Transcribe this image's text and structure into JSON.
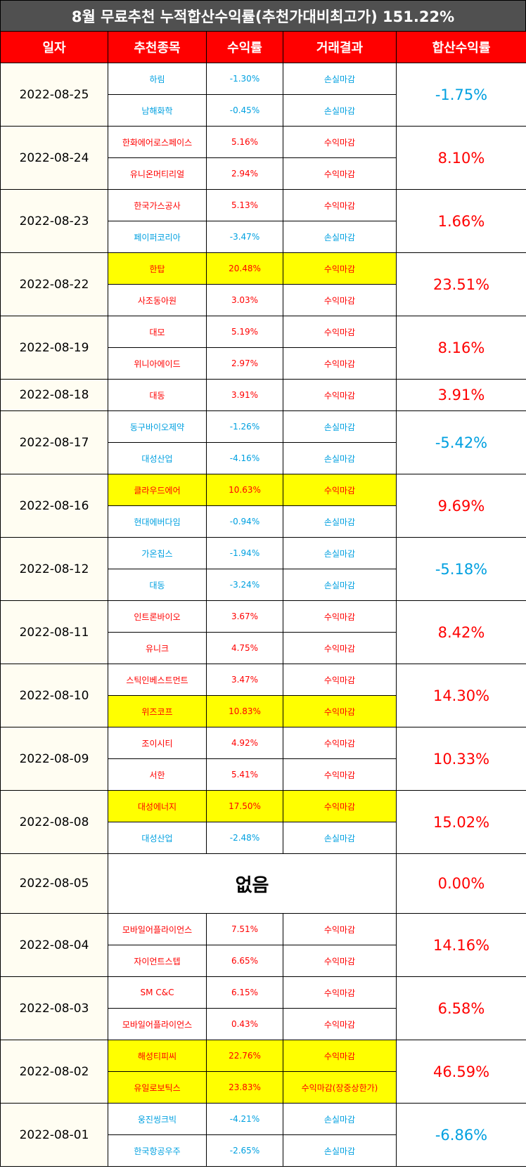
{
  "title": "8월 무료추천 누적합산수익률(추천가대비최고가) 151.22%",
  "headers": [
    "일자",
    "추천종목",
    "수익률",
    "거래결과",
    "합산수익률"
  ],
  "colors": {
    "header_bg": "#ff0000",
    "title_bg": "#505050",
    "profit": "#ff0000",
    "loss": "#00a0e0",
    "highlight": "#ffff00",
    "date_bg": "#fffdf2"
  },
  "rows": [
    {
      "date": "2022-08-25",
      "sum": "-1.75%",
      "items": [
        {
          "name": "하림",
          "rate": "-1.30%",
          "result": "손실마감",
          "hl": false
        },
        {
          "name": "남해화학",
          "rate": "-0.45%",
          "result": "손실마감",
          "hl": false
        }
      ]
    },
    {
      "date": "2022-08-24",
      "sum": "8.10%",
      "items": [
        {
          "name": "한화에어로스페이스",
          "rate": "5.16%",
          "result": "수익마감",
          "hl": false
        },
        {
          "name": "유니온머티리얼",
          "rate": "2.94%",
          "result": "수익마감",
          "hl": false
        }
      ]
    },
    {
      "date": "2022-08-23",
      "sum": "1.66%",
      "items": [
        {
          "name": "한국가스공사",
          "rate": "5.13%",
          "result": "수익마감",
          "hl": false
        },
        {
          "name": "페이퍼코리아",
          "rate": "-3.47%",
          "result": "손실마감",
          "hl": false
        }
      ]
    },
    {
      "date": "2022-08-22",
      "sum": "23.51%",
      "items": [
        {
          "name": "한탑",
          "rate": "20.48%",
          "result": "수익마감",
          "hl": true
        },
        {
          "name": "사조동아원",
          "rate": "3.03%",
          "result": "수익마감",
          "hl": false
        }
      ]
    },
    {
      "date": "2022-08-19",
      "sum": "8.16%",
      "items": [
        {
          "name": "대모",
          "rate": "5.19%",
          "result": "수익마감",
          "hl": false
        },
        {
          "name": "위니아에이드",
          "rate": "2.97%",
          "result": "수익마감",
          "hl": false
        }
      ]
    },
    {
      "date": "2022-08-18",
      "sum": "3.91%",
      "items": [
        {
          "name": "대동",
          "rate": "3.91%",
          "result": "수익마감",
          "hl": false
        }
      ]
    },
    {
      "date": "2022-08-17",
      "sum": "-5.42%",
      "items": [
        {
          "name": "동구바이오제약",
          "rate": "-1.26%",
          "result": "손실마감",
          "hl": false
        },
        {
          "name": "대성산업",
          "rate": "-4.16%",
          "result": "손실마감",
          "hl": false
        }
      ]
    },
    {
      "date": "2022-08-16",
      "sum": "9.69%",
      "items": [
        {
          "name": "클라우드에어",
          "rate": "10.63%",
          "result": "수익마감",
          "hl": true
        },
        {
          "name": "현대에버다임",
          "rate": "-0.94%",
          "result": "손실마감",
          "hl": false
        }
      ]
    },
    {
      "date": "2022-08-12",
      "sum": "-5.18%",
      "items": [
        {
          "name": "가온칩스",
          "rate": "-1.94%",
          "result": "손실마감",
          "hl": false
        },
        {
          "name": "대동",
          "rate": "-3.24%",
          "result": "손실마감",
          "hl": false
        }
      ]
    },
    {
      "date": "2022-08-11",
      "sum": "8.42%",
      "items": [
        {
          "name": "인트론바이오",
          "rate": "3.67%",
          "result": "수익마감",
          "hl": false
        },
        {
          "name": "유니크",
          "rate": "4.75%",
          "result": "수익마감",
          "hl": false
        }
      ]
    },
    {
      "date": "2022-08-10",
      "sum": "14.30%",
      "items": [
        {
          "name": "스틱인베스트먼트",
          "rate": "3.47%",
          "result": "수익마감",
          "hl": false
        },
        {
          "name": "위즈코프",
          "rate": "10.83%",
          "result": "수익마감",
          "hl": true
        }
      ]
    },
    {
      "date": "2022-08-09",
      "sum": "10.33%",
      "items": [
        {
          "name": "조이시티",
          "rate": "4.92%",
          "result": "수익마감",
          "hl": false
        },
        {
          "name": "서한",
          "rate": "5.41%",
          "result": "수익마감",
          "hl": false
        }
      ]
    },
    {
      "date": "2022-08-08",
      "sum": "15.02%",
      "items": [
        {
          "name": "대성에너지",
          "rate": "17.50%",
          "result": "수익마감",
          "hl": true
        },
        {
          "name": "대성산업",
          "rate": "-2.48%",
          "result": "손실마감",
          "hl": false
        }
      ]
    },
    {
      "date": "2022-08-05",
      "sum": "0.00%",
      "none": "없음",
      "items": []
    },
    {
      "date": "2022-08-04",
      "sum": "14.16%",
      "items": [
        {
          "name": "모바일어플라이언스",
          "rate": "7.51%",
          "result": "수익마감",
          "hl": false
        },
        {
          "name": "자이언트스텝",
          "rate": "6.65%",
          "result": "수익마감",
          "hl": false
        }
      ]
    },
    {
      "date": "2022-08-03",
      "sum": "6.58%",
      "items": [
        {
          "name": "SM C&C",
          "rate": "6.15%",
          "result": "수익마감",
          "hl": false
        },
        {
          "name": "모바일어플라이언스",
          "rate": "0.43%",
          "result": "수익마감",
          "hl": false
        }
      ]
    },
    {
      "date": "2022-08-02",
      "sum": "46.59%",
      "items": [
        {
          "name": "해성티피씨",
          "rate": "22.76%",
          "result": "수익마감",
          "hl": true
        },
        {
          "name": "유일로보틱스",
          "rate": "23.83%",
          "result": "수익마감(장중상한가)",
          "hl": true
        }
      ]
    },
    {
      "date": "2022-08-01",
      "sum": "-6.86%",
      "items": [
        {
          "name": "웅진씽크빅",
          "rate": "-4.21%",
          "result": "손실마감",
          "hl": false
        },
        {
          "name": "한국항공우주",
          "rate": "-2.65%",
          "result": "손실마감",
          "hl": false
        }
      ]
    }
  ]
}
